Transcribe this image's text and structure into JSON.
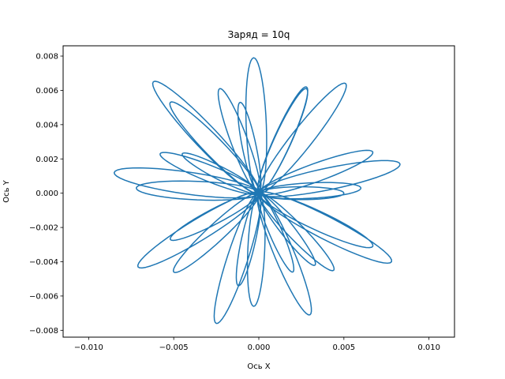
{
  "chart_data": {
    "type": "line",
    "title": "Заряд = 10q",
    "xlabel": "Ось X",
    "ylabel": "Ось Y",
    "xlim": [
      -0.0115,
      0.0115
    ],
    "ylim": [
      -0.0084,
      0.0086
    ],
    "xticks": [
      -0.01,
      -0.005,
      0.0,
      0.005,
      0.01
    ],
    "xtick_labels": [
      "−0.010",
      "−0.005",
      "0.000",
      "0.005",
      "0.010"
    ],
    "yticks": [
      -0.008,
      -0.006,
      -0.004,
      -0.002,
      0.0,
      0.002,
      0.004,
      0.006,
      0.008
    ],
    "ytick_labels": [
      "−0.008",
      "−0.006",
      "−0.004",
      "−0.002",
      "0.000",
      "0.002",
      "0.004",
      "0.006",
      "0.008"
    ],
    "grid": false,
    "series": [
      {
        "color": "#1f77b4",
        "petal_tips": [
          [
            -0.0003,
            0.0079
          ],
          [
            0.0028,
            0.0062
          ],
          [
            0.0051,
            0.0064
          ],
          [
            0.0067,
            0.0024
          ],
          [
            0.0083,
            0.0017
          ],
          [
            0.006,
            0.0003
          ],
          [
            0.005,
            0.0
          ],
          [
            0.0067,
            -0.0031
          ],
          [
            0.0078,
            -0.004
          ],
          [
            0.0044,
            -0.0045
          ],
          [
            0.0033,
            -0.0042
          ],
          [
            0.003,
            -0.0071
          ],
          [
            0.002,
            -0.0046
          ],
          [
            -0.0003,
            -0.0066
          ],
          [
            -0.0012,
            -0.0054
          ],
          [
            -0.0025,
            -0.0076
          ],
          [
            -0.005,
            -0.0046
          ],
          [
            -0.0052,
            -0.0027
          ],
          [
            -0.0071,
            -0.0043
          ],
          [
            -0.0072,
            0.0003
          ],
          [
            -0.0085,
            0.0012
          ],
          [
            -0.0058,
            0.0023
          ],
          [
            -0.0045,
            0.0023
          ],
          [
            -0.0062,
            0.0065
          ],
          [
            -0.0052,
            0.0053
          ],
          [
            -0.0023,
            0.0061
          ],
          [
            -0.0011,
            0.0053
          ],
          [
            0.0028,
            0.0061
          ]
        ]
      }
    ]
  }
}
